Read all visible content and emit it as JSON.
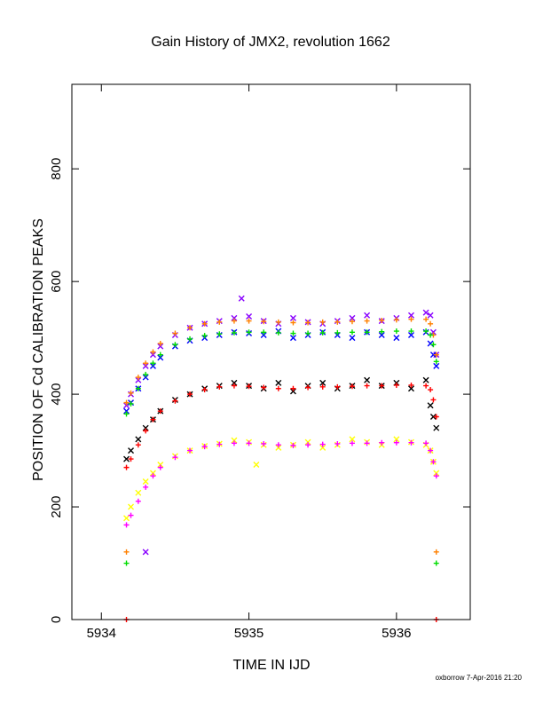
{
  "chart_data": {
    "type": "scatter",
    "title": "Gain History of JMX2, revolution 1662",
    "xlabel": "TIME IN IJD",
    "ylabel": "POSITION OF Cd CALIBRATION PEAKS",
    "footer": "oxborrow  7-Apr-2016 21:20",
    "xlim": [
      5933.8,
      5936.5
    ],
    "ylim": [
      0,
      950
    ],
    "xticks": [
      5934,
      5935,
      5936
    ],
    "yticks": [
      0,
      200,
      400,
      600,
      800
    ],
    "grid": false,
    "legend": "none",
    "series": [
      {
        "color": "#8800ff",
        "marker": "x",
        "x": [
          5934.17,
          5934.2,
          5934.25,
          5934.3,
          5934.35,
          5934.4,
          5934.5,
          5934.6,
          5934.7,
          5934.8,
          5934.9,
          5934.95,
          5935.0,
          5935.1,
          5935.2,
          5935.3,
          5935.4,
          5935.5,
          5935.6,
          5935.7,
          5935.8,
          5935.9,
          5936.0,
          5936.1,
          5936.2,
          5936.23,
          5936.25,
          5936.27,
          5934.3
        ],
        "y": [
          380,
          400,
          425,
          450,
          470,
          485,
          505,
          518,
          525,
          530,
          535,
          570,
          538,
          530,
          525,
          535,
          528,
          525,
          530,
          535,
          540,
          530,
          535,
          540,
          545,
          540,
          510,
          470,
          120
        ]
      },
      {
        "color": "#0000ff",
        "marker": "x",
        "x": [
          5934.17,
          5934.2,
          5934.25,
          5934.3,
          5934.35,
          5934.4,
          5934.5,
          5934.6,
          5934.7,
          5934.8,
          5934.9,
          5935.0,
          5935.1,
          5935.2,
          5935.3,
          5935.4,
          5935.5,
          5935.6,
          5935.7,
          5935.8,
          5935.9,
          5936.0,
          5936.1,
          5936.2,
          5936.23,
          5936.25,
          5936.27
        ],
        "y": [
          370,
          385,
          410,
          430,
          450,
          465,
          485,
          495,
          500,
          505,
          510,
          508,
          505,
          512,
          500,
          505,
          510,
          505,
          500,
          510,
          505,
          500,
          505,
          510,
          490,
          470,
          450
        ]
      },
      {
        "color": "#000000",
        "marker": "x",
        "x": [
          5934.17,
          5934.2,
          5934.25,
          5934.3,
          5934.35,
          5934.4,
          5934.5,
          5934.6,
          5934.7,
          5934.8,
          5934.9,
          5935.0,
          5935.1,
          5935.2,
          5935.3,
          5935.4,
          5935.5,
          5935.6,
          5935.7,
          5935.8,
          5935.9,
          5936.0,
          5936.1,
          5936.2,
          5936.23,
          5936.25,
          5936.27
        ],
        "y": [
          285,
          300,
          320,
          340,
          355,
          370,
          390,
          400,
          410,
          415,
          420,
          415,
          410,
          420,
          405,
          415,
          420,
          410,
          415,
          425,
          415,
          420,
          410,
          425,
          380,
          360,
          340
        ]
      },
      {
        "color": "#ffff00",
        "marker": "x",
        "x": [
          5934.17,
          5934.2,
          5934.25,
          5934.3,
          5934.35,
          5934.4,
          5934.5,
          5934.6,
          5934.7,
          5934.8,
          5934.9,
          5935.0,
          5935.05,
          5935.1,
          5935.2,
          5935.3,
          5935.4,
          5935.5,
          5935.6,
          5935.7,
          5935.8,
          5935.9,
          5936.0,
          5936.1,
          5936.2,
          5936.23,
          5936.25,
          5936.27
        ],
        "y": [
          180,
          200,
          225,
          245,
          260,
          275,
          290,
          300,
          308,
          312,
          318,
          315,
          275,
          310,
          305,
          310,
          315,
          305,
          310,
          320,
          315,
          310,
          320,
          315,
          310,
          300,
          280,
          260
        ]
      },
      {
        "color": "#ff8000",
        "marker": "+",
        "x": [
          5934.17,
          5934.2,
          5934.25,
          5934.3,
          5934.35,
          5934.4,
          5934.5,
          5934.6,
          5934.7,
          5934.8,
          5934.9,
          5935.0,
          5935.1,
          5935.2,
          5935.3,
          5935.4,
          5935.5,
          5935.6,
          5935.7,
          5935.8,
          5935.9,
          5936.0,
          5936.1,
          5936.2,
          5936.23,
          5936.25,
          5936.27,
          5934.17,
          5936.27
        ],
        "y": [
          385,
          402,
          430,
          455,
          475,
          490,
          508,
          518,
          525,
          528,
          530,
          530,
          529,
          528,
          527,
          527,
          528,
          528,
          529,
          530,
          531,
          532,
          533,
          533,
          525,
          505,
          470,
          120,
          120
        ]
      },
      {
        "color": "#00dd00",
        "marker": "+",
        "x": [
          5934.17,
          5934.2,
          5934.25,
          5934.3,
          5934.35,
          5934.4,
          5934.5,
          5934.6,
          5934.7,
          5934.8,
          5934.9,
          5935.0,
          5935.1,
          5935.2,
          5935.3,
          5935.4,
          5935.5,
          5935.6,
          5935.7,
          5935.8,
          5935.9,
          5936.0,
          5936.1,
          5936.2,
          5936.23,
          5936.25,
          5936.27,
          5934.17,
          5936.27
        ],
        "y": [
          365,
          383,
          410,
          435,
          455,
          470,
          488,
          498,
          504,
          507,
          509,
          510,
          510,
          509,
          508,
          508,
          509,
          509,
          510,
          510,
          511,
          512,
          512,
          512,
          505,
          488,
          458,
          100,
          100
        ]
      },
      {
        "color": "#ff0000",
        "marker": "+",
        "x": [
          5934.17,
          5934.2,
          5934.25,
          5934.3,
          5934.35,
          5934.4,
          5934.5,
          5934.6,
          5934.7,
          5934.8,
          5934.9,
          5935.0,
          5935.1,
          5935.2,
          5935.3,
          5935.4,
          5935.5,
          5935.6,
          5935.7,
          5935.8,
          5935.9,
          5936.0,
          5936.1,
          5936.2,
          5936.23,
          5936.25,
          5936.27,
          5934.17,
          5936.27
        ],
        "y": [
          270,
          285,
          310,
          335,
          355,
          370,
          388,
          400,
          408,
          413,
          415,
          414,
          412,
          410,
          410,
          412,
          413,
          413,
          414,
          415,
          415,
          416,
          416,
          415,
          408,
          390,
          360,
          0,
          0
        ]
      },
      {
        "color": "#ff00ff",
        "marker": "+",
        "x": [
          5934.17,
          5934.2,
          5934.25,
          5934.3,
          5934.35,
          5934.4,
          5934.5,
          5934.6,
          5934.7,
          5934.8,
          5934.9,
          5935.0,
          5935.1,
          5935.2,
          5935.3,
          5935.4,
          5935.5,
          5935.6,
          5935.7,
          5935.8,
          5935.9,
          5936.0,
          5936.1,
          5936.2,
          5936.23,
          5936.25,
          5936.27
        ],
        "y": [
          168,
          185,
          210,
          235,
          255,
          270,
          288,
          300,
          307,
          311,
          313,
          313,
          312,
          310,
          309,
          310,
          311,
          312,
          313,
          313,
          314,
          314,
          314,
          313,
          300,
          280,
          255
        ]
      }
    ]
  }
}
